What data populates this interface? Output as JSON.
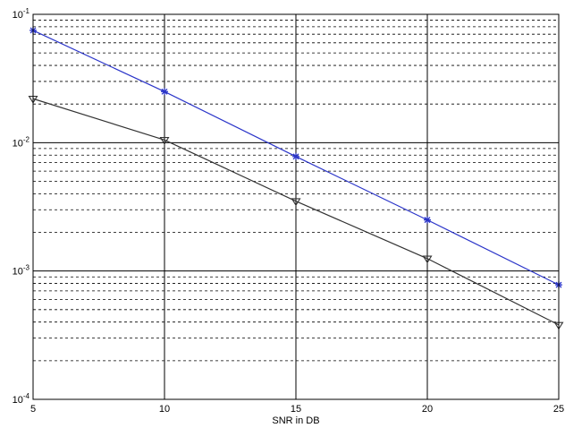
{
  "chart_data": {
    "type": "line",
    "xlabel": "SNR in DB",
    "ylabel": "",
    "title": "",
    "xlim": [
      5,
      25
    ],
    "ylim": [
      0.0001,
      0.1
    ],
    "yscale": "log",
    "grid": true,
    "x": [
      5,
      10,
      15,
      20,
      25
    ],
    "x_ticks": [
      "5",
      "10",
      "15",
      "20",
      "25"
    ],
    "y_ticks": [
      {
        "base": "10",
        "exp": "-1",
        "value": 0.1
      },
      {
        "base": "10",
        "exp": "-2",
        "value": 0.01
      },
      {
        "base": "10",
        "exp": "-3",
        "value": 0.001
      },
      {
        "base": "10",
        "exp": "-4",
        "value": 0.0001
      }
    ],
    "series": [
      {
        "color": "#2b35c9",
        "marker": "star",
        "values": [
          0.075,
          0.025,
          0.0078,
          0.0025,
          0.00078
        ]
      },
      {
        "color": "#333333",
        "marker": "triangle-down",
        "values": [
          0.022,
          0.0105,
          0.0035,
          0.00125,
          0.00038
        ]
      }
    ]
  }
}
